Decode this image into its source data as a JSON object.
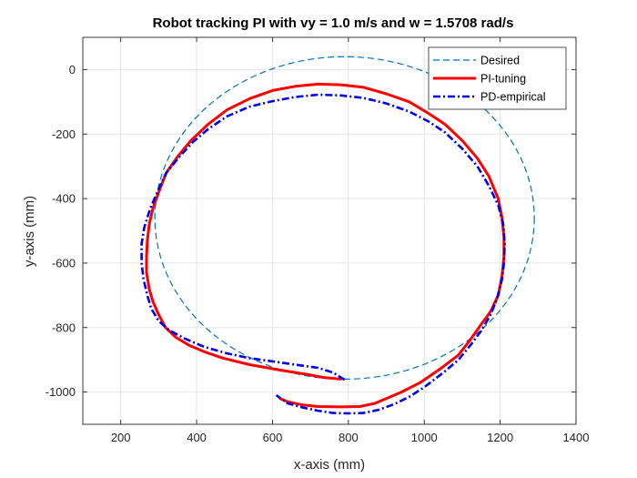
{
  "chart_data": {
    "type": "line",
    "title": "Robot tracking PI with vy = 1.0 m/s and w = 1.5708 rad/s",
    "xlabel": "x-axis (mm)",
    "ylabel": "y-axis (mm)",
    "xlim": [
      100,
      1400
    ],
    "ylim": [
      -1100,
      100
    ],
    "xticks": [
      200,
      400,
      600,
      800,
      1000,
      1200,
      1400
    ],
    "yticks": [
      0,
      -200,
      -400,
      -600,
      -800,
      -1000
    ],
    "xtick_labels": [
      "200",
      "400",
      "600",
      "800",
      "1000",
      "1200",
      "1400"
    ],
    "ytick_labels": [
      "0",
      "-200",
      "-400",
      "-600",
      "-800",
      "-1000"
    ],
    "grid": true,
    "legend_position": "top-right",
    "series": [
      {
        "name": "Desired",
        "color": "#0072BD",
        "style": "dashed",
        "circle": {
          "center": [
            790,
            -460
          ],
          "radius": 500
        }
      },
      {
        "name": "PI-tuning",
        "color": "#ff0000",
        "style": "solid",
        "points": [
          [
            780,
            -960
          ],
          [
            735,
            -955
          ],
          [
            690,
            -945
          ],
          [
            620,
            -932
          ],
          [
            540,
            -915
          ],
          [
            470,
            -895
          ],
          [
            420,
            -875
          ],
          [
            380,
            -855
          ],
          [
            345,
            -830
          ],
          [
            318,
            -800
          ],
          [
            300,
            -760
          ],
          [
            285,
            -720
          ],
          [
            275,
            -680
          ],
          [
            268,
            -630
          ],
          [
            268,
            -580
          ],
          [
            270,
            -530
          ],
          [
            275,
            -480
          ],
          [
            285,
            -430
          ],
          [
            300,
            -380
          ],
          [
            320,
            -320
          ],
          [
            350,
            -270
          ],
          [
            385,
            -220
          ],
          [
            430,
            -170
          ],
          [
            480,
            -125
          ],
          [
            540,
            -90
          ],
          [
            600,
            -65
          ],
          [
            660,
            -52
          ],
          [
            720,
            -45
          ],
          [
            780,
            -47
          ],
          [
            840,
            -55
          ],
          [
            900,
            -75
          ],
          [
            960,
            -100
          ],
          [
            1010,
            -135
          ],
          [
            1055,
            -170
          ],
          [
            1100,
            -220
          ],
          [
            1140,
            -275
          ],
          [
            1170,
            -330
          ],
          [
            1195,
            -400
          ],
          [
            1205,
            -460
          ],
          [
            1210,
            -520
          ],
          [
            1210,
            -580
          ],
          [
            1205,
            -640
          ],
          [
            1195,
            -700
          ],
          [
            1175,
            -750
          ],
          [
            1150,
            -790
          ],
          [
            1120,
            -840
          ],
          [
            1090,
            -885
          ],
          [
            1040,
            -930
          ],
          [
            990,
            -970
          ],
          [
            940,
            -1000
          ],
          [
            900,
            -1020
          ],
          [
            870,
            -1035
          ],
          [
            830,
            -1045
          ],
          [
            780,
            -1046
          ],
          [
            720,
            -1045
          ],
          [
            680,
            -1040
          ],
          [
            640,
            -1030
          ],
          [
            620,
            -1020
          ]
        ]
      },
      {
        "name": "PD-empirical",
        "color": "#0000ee",
        "style": "dashdot",
        "points": [
          [
            790,
            -962
          ],
          [
            760,
            -940
          ],
          [
            720,
            -925
          ],
          [
            660,
            -915
          ],
          [
            600,
            -905
          ],
          [
            540,
            -895
          ],
          [
            480,
            -880
          ],
          [
            420,
            -860
          ],
          [
            370,
            -835
          ],
          [
            330,
            -810
          ],
          [
            300,
            -780
          ],
          [
            280,
            -740
          ],
          [
            270,
            -700
          ],
          [
            260,
            -650
          ],
          [
            255,
            -600
          ],
          [
            255,
            -540
          ],
          [
            262,
            -490
          ],
          [
            278,
            -430
          ],
          [
            300,
            -370
          ],
          [
            320,
            -320
          ],
          [
            355,
            -270
          ],
          [
            390,
            -225
          ],
          [
            430,
            -185
          ],
          [
            480,
            -145
          ],
          [
            540,
            -115
          ],
          [
            600,
            -98
          ],
          [
            660,
            -85
          ],
          [
            720,
            -78
          ],
          [
            780,
            -80
          ],
          [
            840,
            -88
          ],
          [
            900,
            -105
          ],
          [
            960,
            -130
          ],
          [
            1010,
            -160
          ],
          [
            1055,
            -195
          ],
          [
            1100,
            -245
          ],
          [
            1140,
            -300
          ],
          [
            1170,
            -360
          ],
          [
            1195,
            -420
          ],
          [
            1208,
            -480
          ],
          [
            1212,
            -540
          ],
          [
            1210,
            -600
          ],
          [
            1205,
            -650
          ],
          [
            1192,
            -710
          ],
          [
            1175,
            -760
          ],
          [
            1150,
            -810
          ],
          [
            1125,
            -850
          ],
          [
            1090,
            -900
          ],
          [
            1050,
            -940
          ],
          [
            1000,
            -985
          ],
          [
            960,
            -1015
          ],
          [
            920,
            -1038
          ],
          [
            880,
            -1055
          ],
          [
            840,
            -1065
          ],
          [
            800,
            -1066
          ],
          [
            760,
            -1065
          ],
          [
            720,
            -1058
          ],
          [
            680,
            -1048
          ],
          [
            640,
            -1035
          ],
          [
            610,
            -1010
          ]
        ]
      }
    ]
  }
}
